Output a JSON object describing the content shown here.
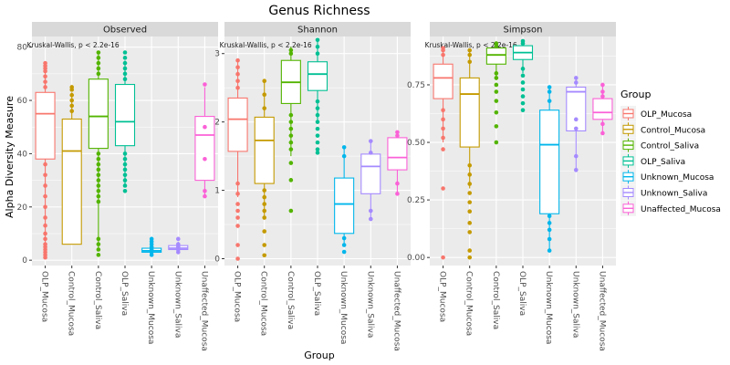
{
  "chart_data": {
    "type": "box",
    "title": "Genus Richness",
    "xlabel": "Group",
    "ylabel": "Alpha Diversity Measure",
    "legend_title": "Group",
    "legend_position": "right",
    "grid": true,
    "categories": [
      "OLP_Mucosa",
      "Control_Mucosa",
      "Control_Saliva",
      "OLP_Saliva",
      "Unknown_Mucosa",
      "Unknown_Saliva",
      "Unaffected_Mucosa"
    ],
    "colors": [
      "#F8766D",
      "#C49A00",
      "#53B400",
      "#00C094",
      "#00B6EB",
      "#A58AFF",
      "#FB61D7"
    ],
    "panels": [
      {
        "name": "Observed",
        "annotation": "Kruskal-Wallis, p < 2.2e-16",
        "ylim": [
          -2,
          84
        ],
        "yticks": [
          0,
          20,
          40,
          60,
          80
        ],
        "ytick_labels": [
          "0",
          "20",
          "40",
          "60",
          "80"
        ],
        "boxes": [
          {
            "group": "OLP_Mucosa",
            "min": 1,
            "q1": 38,
            "median": 55,
            "q3": 63,
            "max": 74,
            "outliers": [
              1,
              2,
              3,
              4,
              5,
              6,
              8,
              10,
              13,
              16,
              20,
              24,
              28,
              32,
              36,
              65,
              67,
              69,
              71,
              72,
              73,
              74
            ]
          },
          {
            "group": "Control_Mucosa",
            "min": 6,
            "q1": 6,
            "median": 41,
            "q3": 53,
            "max": 63,
            "outliers": [
              56,
              58,
              60,
              62,
              64,
              65
            ]
          },
          {
            "group": "Control_Saliva",
            "min": 4,
            "q1": 42,
            "median": 54,
            "q3": 68,
            "max": 78,
            "outliers": [
              2,
              4,
              6,
              8,
              22,
              24,
              26,
              28,
              30,
              32,
              34,
              36,
              38,
              40,
              70,
              72,
              74,
              76,
              78
            ]
          },
          {
            "group": "OLP_Saliva",
            "min": 28,
            "q1": 43,
            "median": 52,
            "q3": 66,
            "max": 75,
            "outliers": [
              26,
              28,
              30,
              32,
              34,
              36,
              38,
              40,
              68,
              70,
              72,
              74,
              76,
              78
            ]
          },
          {
            "group": "Unknown_Mucosa",
            "min": 2,
            "q1": 3,
            "median": 3.5,
            "q3": 4.5,
            "max": 6,
            "outliers": [
              2,
              3,
              4,
              5,
              6,
              7,
              8
            ]
          },
          {
            "group": "Unknown_Saliva",
            "min": 3,
            "q1": 4,
            "median": 4.5,
            "q3": 5.5,
            "max": 7,
            "outliers": [
              3,
              4,
              5,
              6,
              8
            ]
          },
          {
            "group": "Unaffected_Mucosa",
            "min": 24,
            "q1": 30,
            "median": 47,
            "q3": 54,
            "max": 65,
            "outliers": [
              24,
              26,
              38,
              50,
              66
            ]
          }
        ]
      },
      {
        "name": "Shannon",
        "annotation": "Kruskal-Wallis, p < 2.2e-16",
        "ylim": [
          -0.1,
          3.25
        ],
        "yticks": [
          0,
          1,
          2,
          3
        ],
        "ytick_labels": [
          "0",
          "1",
          "2",
          "3"
        ],
        "boxes": [
          {
            "group": "OLP_Mucosa",
            "min": 0.9,
            "q1": 1.57,
            "median": 2.04,
            "q3": 2.35,
            "max": 2.9,
            "outliers": [
              0,
              0.2,
              0.48,
              0.6,
              0.7,
              0.8,
              0.95,
              1.1,
              2.5,
              2.6,
              2.7,
              2.8,
              2.9
            ]
          },
          {
            "group": "Control_Mucosa",
            "min": 0.6,
            "q1": 1.1,
            "median": 1.73,
            "q3": 2.07,
            "max": 2.6,
            "outliers": [
              0.05,
              0.2,
              0.4,
              0.6,
              0.7,
              0.8,
              0.9,
              1.0,
              2.2,
              2.4,
              2.6
            ]
          },
          {
            "group": "Control_Saliva",
            "min": 1.5,
            "q1": 2.27,
            "median": 2.58,
            "q3": 2.9,
            "max": 3.1,
            "outliers": [
              0.7,
              1.15,
              1.4,
              1.6,
              1.7,
              1.8,
              1.9,
              2.0,
              2.1,
              3.0,
              3.05
            ]
          },
          {
            "group": "OLP_Saliva",
            "min": 2.0,
            "q1": 2.46,
            "median": 2.7,
            "q3": 2.88,
            "max": 3.2,
            "outliers": [
              1.55,
              1.6,
              1.7,
              1.8,
              1.9,
              2.0,
              2.1,
              2.2,
              2.3,
              3.0,
              3.1,
              3.2
            ]
          },
          {
            "group": "Unknown_Mucosa",
            "min": 0.2,
            "q1": 0.37,
            "median": 0.8,
            "q3": 1.18,
            "max": 1.63,
            "outliers": [
              0.1,
              0.2,
              0.3,
              1.5,
              1.63
            ]
          },
          {
            "group": "Unknown_Saliva",
            "min": 0.58,
            "q1": 0.95,
            "median": 1.35,
            "q3": 1.53,
            "max": 1.72,
            "outliers": [
              0.58,
              0.7,
              1.55,
              1.72
            ]
          },
          {
            "group": "Unaffected_Mucosa",
            "min": 0.95,
            "q1": 1.3,
            "median": 1.48,
            "q3": 1.77,
            "max": 1.85,
            "outliers": [
              0.95,
              1.1,
              1.8,
              1.85
            ]
          }
        ]
      },
      {
        "name": "Simpson",
        "annotation": "Kruskal-Wallis, p < 2.2e-16",
        "ylim": [
          -0.035,
          0.96
        ],
        "yticks": [
          0,
          0.25,
          0.5,
          0.75
        ],
        "ytick_labels": [
          "0.00",
          "0.25",
          "0.50",
          "0.75"
        ],
        "boxes": [
          {
            "group": "OLP_Mucosa",
            "min": 0.5,
            "q1": 0.69,
            "median": 0.78,
            "q3": 0.84,
            "max": 0.91,
            "outliers": [
              0,
              0.3,
              0.47,
              0.52,
              0.56,
              0.6,
              0.64,
              0.88,
              0.9,
              0.91
            ]
          },
          {
            "group": "Control_Mucosa",
            "min": 0.3,
            "q1": 0.48,
            "median": 0.71,
            "q3": 0.78,
            "max": 0.9,
            "outliers": [
              0,
              0.03,
              0.11,
              0.15,
              0.2,
              0.24,
              0.28,
              0.32,
              0.36,
              0.4,
              0.85,
              0.88,
              0.9
            ]
          },
          {
            "group": "Control_Saliva",
            "min": 0.77,
            "q1": 0.84,
            "median": 0.88,
            "q3": 0.91,
            "max": 0.93,
            "outliers": [
              0.5,
              0.57,
              0.63,
              0.68,
              0.72,
              0.75,
              0.78,
              0.8,
              0.92,
              0.93
            ]
          },
          {
            "group": "OLP_Saliva",
            "min": 0.8,
            "q1": 0.86,
            "median": 0.89,
            "q3": 0.92,
            "max": 0.94,
            "outliers": [
              0.64,
              0.67,
              0.7,
              0.73,
              0.76,
              0.79,
              0.82,
              0.93,
              0.94
            ]
          },
          {
            "group": "Unknown_Mucosa",
            "min": 0.03,
            "q1": 0.19,
            "median": 0.49,
            "q3": 0.64,
            "max": 0.74,
            "outliers": [
              0.03,
              0.08,
              0.12,
              0.15,
              0.18,
              0.68,
              0.72,
              0.74
            ]
          },
          {
            "group": "Unknown_Saliva",
            "min": 0.38,
            "q1": 0.55,
            "median": 0.72,
            "q3": 0.74,
            "max": 0.78,
            "outliers": [
              0.38,
              0.44,
              0.56,
              0.6,
              0.76,
              0.78
            ]
          },
          {
            "group": "Unaffected_Mucosa",
            "min": 0.54,
            "q1": 0.6,
            "median": 0.63,
            "q3": 0.69,
            "max": 0.75,
            "outliers": [
              0.54,
              0.58,
              0.7,
              0.72,
              0.75
            ]
          }
        ]
      }
    ]
  }
}
